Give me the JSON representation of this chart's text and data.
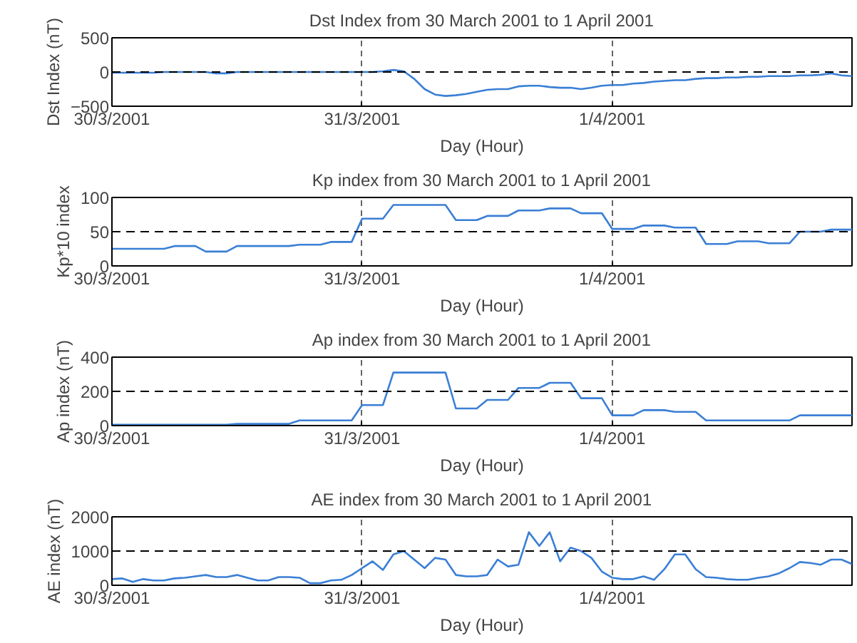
{
  "chart_data": [
    {
      "type": "line",
      "title": "Dst Index from 30 March 2001 to 1 April 2001",
      "xlabel": "Day (Hour)",
      "ylabel": "Dst Index (nT)",
      "x": [
        "2001-03-30T00:00",
        "2001-03-30T01:00",
        "2001-03-30T02:00",
        "2001-03-30T03:00",
        "2001-03-30T04:00",
        "2001-03-30T05:00",
        "2001-03-30T06:00",
        "2001-03-30T07:00",
        "2001-03-30T08:00",
        "2001-03-30T09:00",
        "2001-03-30T10:00",
        "2001-03-30T11:00",
        "2001-03-30T12:00",
        "2001-03-30T13:00",
        "2001-03-30T14:00",
        "2001-03-30T15:00",
        "2001-03-30T16:00",
        "2001-03-30T17:00",
        "2001-03-30T18:00",
        "2001-03-30T19:00",
        "2001-03-30T20:00",
        "2001-03-30T21:00",
        "2001-03-30T22:00",
        "2001-03-30T23:00",
        "2001-03-31T00:00",
        "2001-03-31T01:00",
        "2001-03-31T02:00",
        "2001-03-31T03:00",
        "2001-03-31T04:00",
        "2001-03-31T05:00",
        "2001-03-31T06:00",
        "2001-03-31T07:00",
        "2001-03-31T08:00",
        "2001-03-31T09:00",
        "2001-03-31T10:00",
        "2001-03-31T11:00",
        "2001-03-31T12:00",
        "2001-03-31T13:00",
        "2001-03-31T14:00",
        "2001-03-31T15:00",
        "2001-03-31T16:00",
        "2001-03-31T17:00",
        "2001-03-31T18:00",
        "2001-03-31T19:00",
        "2001-03-31T20:00",
        "2001-03-31T21:00",
        "2001-03-31T22:00",
        "2001-03-31T23:00",
        "2001-04-01T00:00",
        "2001-04-01T01:00",
        "2001-04-01T02:00",
        "2001-04-01T03:00",
        "2001-04-01T04:00",
        "2001-04-01T05:00",
        "2001-04-01T06:00",
        "2001-04-01T07:00",
        "2001-04-01T08:00",
        "2001-04-01T09:00",
        "2001-04-01T10:00",
        "2001-04-01T11:00",
        "2001-04-01T12:00",
        "2001-04-01T13:00",
        "2001-04-01T14:00",
        "2001-04-01T15:00",
        "2001-04-01T16:00",
        "2001-04-01T17:00",
        "2001-04-01T18:00",
        "2001-04-01T19:00",
        "2001-04-01T20:00",
        "2001-04-01T21:00",
        "2001-04-01T22:00",
        "2001-04-01T23:00"
      ],
      "series": [
        {
          "color": "#3a7fd5",
          "values": [
            -10,
            -10,
            -10,
            -10,
            -10,
            0,
            0,
            0,
            0,
            0,
            -20,
            -20,
            0,
            0,
            0,
            0,
            0,
            0,
            0,
            0,
            0,
            0,
            0,
            0,
            0,
            0,
            10,
            30,
            10,
            -100,
            -250,
            -330,
            -350,
            -340,
            -320,
            -290,
            -260,
            -250,
            -250,
            -210,
            -200,
            -200,
            -220,
            -230,
            -230,
            -250,
            -230,
            -200,
            -190,
            -190,
            -170,
            -160,
            -140,
            -130,
            -120,
            -120,
            -100,
            -90,
            -90,
            -80,
            -80,
            -70,
            -70,
            -60,
            -60,
            -60,
            -50,
            -50,
            -40,
            -20,
            -50,
            -60
          ]
        }
      ],
      "xlim": [
        "2001-03-30T00:00",
        "2001-04-01T23:00"
      ],
      "xticks": [
        {
          "value": "2001-03-30",
          "label": "30/3/2001"
        },
        {
          "value": "2001-03-31",
          "label": "31/3/2001"
        },
        {
          "value": "2001-04-01",
          "label": "1/4/2001"
        }
      ],
      "ylim": [
        -500,
        500
      ],
      "yticks": [
        -500,
        0,
        500
      ],
      "grid": "x",
      "ref_lines": [
        {
          "axis": "y",
          "value": 0,
          "color": "#000000",
          "line_style": "dashed"
        }
      ]
    },
    {
      "type": "line",
      "title": "Kp index from 30 March 2001 to 1 April 2001",
      "xlabel": "Day (Hour)",
      "ylabel": "Kp*10 index",
      "x": [
        "2001-03-30T00:00",
        "2001-03-30T01:00",
        "2001-03-30T02:00",
        "2001-03-30T03:00",
        "2001-03-30T04:00",
        "2001-03-30T05:00",
        "2001-03-30T06:00",
        "2001-03-30T07:00",
        "2001-03-30T08:00",
        "2001-03-30T09:00",
        "2001-03-30T10:00",
        "2001-03-30T11:00",
        "2001-03-30T12:00",
        "2001-03-30T13:00",
        "2001-03-30T14:00",
        "2001-03-30T15:00",
        "2001-03-30T16:00",
        "2001-03-30T17:00",
        "2001-03-30T18:00",
        "2001-03-30T19:00",
        "2001-03-30T20:00",
        "2001-03-30T21:00",
        "2001-03-30T22:00",
        "2001-03-30T23:00",
        "2001-03-31T00:00",
        "2001-03-31T01:00",
        "2001-03-31T02:00",
        "2001-03-31T03:00",
        "2001-03-31T04:00",
        "2001-03-31T05:00",
        "2001-03-31T06:00",
        "2001-03-31T07:00",
        "2001-03-31T08:00",
        "2001-03-31T09:00",
        "2001-03-31T10:00",
        "2001-03-31T11:00",
        "2001-03-31T12:00",
        "2001-03-31T13:00",
        "2001-03-31T14:00",
        "2001-03-31T15:00",
        "2001-03-31T16:00",
        "2001-03-31T17:00",
        "2001-03-31T18:00",
        "2001-03-31T19:00",
        "2001-03-31T20:00",
        "2001-03-31T21:00",
        "2001-03-31T22:00",
        "2001-03-31T23:00",
        "2001-04-01T00:00",
        "2001-04-01T01:00",
        "2001-04-01T02:00",
        "2001-04-01T03:00",
        "2001-04-01T04:00",
        "2001-04-01T05:00",
        "2001-04-01T06:00",
        "2001-04-01T07:00",
        "2001-04-01T08:00",
        "2001-04-01T09:00",
        "2001-04-01T10:00",
        "2001-04-01T11:00",
        "2001-04-01T12:00",
        "2001-04-01T13:00",
        "2001-04-01T14:00",
        "2001-04-01T15:00",
        "2001-04-01T16:00",
        "2001-04-01T17:00",
        "2001-04-01T18:00",
        "2001-04-01T19:00",
        "2001-04-01T20:00",
        "2001-04-01T21:00",
        "2001-04-01T22:00",
        "2001-04-01T23:00"
      ],
      "series": [
        {
          "color": "#3a7fd5",
          "values": [
            25,
            25,
            25,
            25,
            25,
            25,
            29,
            29,
            29,
            21,
            21,
            21,
            29,
            29,
            29,
            29,
            29,
            29,
            31,
            31,
            31,
            35,
            35,
            35,
            69,
            69,
            69,
            89,
            89,
            89,
            89,
            89,
            89,
            67,
            67,
            67,
            73,
            73,
            73,
            81,
            81,
            81,
            84,
            84,
            84,
            77,
            77,
            77,
            54,
            54,
            54,
            59,
            59,
            59,
            56,
            56,
            56,
            32,
            32,
            32,
            36,
            36,
            36,
            33,
            33,
            33,
            50,
            50,
            50,
            53,
            53,
            53
          ]
        }
      ],
      "xlim": [
        "2001-03-30T00:00",
        "2001-04-01T23:00"
      ],
      "xticks": [
        {
          "value": "2001-03-30",
          "label": "30/3/2001"
        },
        {
          "value": "2001-03-31",
          "label": "31/3/2001"
        },
        {
          "value": "2001-04-01",
          "label": "1/4/2001"
        }
      ],
      "ylim": [
        0,
        100
      ],
      "yticks": [
        0,
        50,
        100
      ],
      "grid": "x",
      "ref_lines": [
        {
          "axis": "y",
          "value": 50,
          "color": "#000000",
          "line_style": "dashed"
        }
      ]
    },
    {
      "type": "line",
      "title": "Ap index from 30 March 2001 to 1 April 2001",
      "xlabel": "Day (Hour)",
      "ylabel": "Ap index (nT)",
      "x": [
        "2001-03-30T00:00",
        "2001-03-30T01:00",
        "2001-03-30T02:00",
        "2001-03-30T03:00",
        "2001-03-30T04:00",
        "2001-03-30T05:00",
        "2001-03-30T06:00",
        "2001-03-30T07:00",
        "2001-03-30T08:00",
        "2001-03-30T09:00",
        "2001-03-30T10:00",
        "2001-03-30T11:00",
        "2001-03-30T12:00",
        "2001-03-30T13:00",
        "2001-03-30T14:00",
        "2001-03-30T15:00",
        "2001-03-30T16:00",
        "2001-03-30T17:00",
        "2001-03-30T18:00",
        "2001-03-30T19:00",
        "2001-03-30T20:00",
        "2001-03-30T21:00",
        "2001-03-30T22:00",
        "2001-03-30T23:00",
        "2001-03-31T00:00",
        "2001-03-31T01:00",
        "2001-03-31T02:00",
        "2001-03-31T03:00",
        "2001-03-31T04:00",
        "2001-03-31T05:00",
        "2001-03-31T06:00",
        "2001-03-31T07:00",
        "2001-03-31T08:00",
        "2001-03-31T09:00",
        "2001-03-31T10:00",
        "2001-03-31T11:00",
        "2001-03-31T12:00",
        "2001-03-31T13:00",
        "2001-03-31T14:00",
        "2001-03-31T15:00",
        "2001-03-31T16:00",
        "2001-03-31T17:00",
        "2001-03-31T18:00",
        "2001-03-31T19:00",
        "2001-03-31T20:00",
        "2001-03-31T21:00",
        "2001-03-31T22:00",
        "2001-03-31T23:00",
        "2001-04-01T00:00",
        "2001-04-01T01:00",
        "2001-04-01T02:00",
        "2001-04-01T03:00",
        "2001-04-01T04:00",
        "2001-04-01T05:00",
        "2001-04-01T06:00",
        "2001-04-01T07:00",
        "2001-04-01T08:00",
        "2001-04-01T09:00",
        "2001-04-01T10:00",
        "2001-04-01T11:00",
        "2001-04-01T12:00",
        "2001-04-01T13:00",
        "2001-04-01T14:00",
        "2001-04-01T15:00",
        "2001-04-01T16:00",
        "2001-04-01T17:00",
        "2001-04-01T18:00",
        "2001-04-01T19:00",
        "2001-04-01T20:00",
        "2001-04-01T21:00",
        "2001-04-01T22:00",
        "2001-04-01T23:00"
      ],
      "series": [
        {
          "color": "#3a7fd5",
          "values": [
            5,
            5,
            5,
            5,
            5,
            5,
            5,
            5,
            5,
            5,
            5,
            5,
            10,
            10,
            10,
            10,
            10,
            10,
            30,
            30,
            30,
            30,
            30,
            30,
            120,
            120,
            120,
            310,
            310,
            310,
            310,
            310,
            310,
            100,
            100,
            100,
            150,
            150,
            150,
            220,
            220,
            220,
            250,
            250,
            250,
            160,
            160,
            160,
            60,
            60,
            60,
            90,
            90,
            90,
            80,
            80,
            80,
            30,
            30,
            30,
            30,
            30,
            30,
            30,
            30,
            30,
            60,
            60,
            60,
            60,
            60,
            60
          ]
        }
      ],
      "xlim": [
        "2001-03-30T00:00",
        "2001-04-01T23:00"
      ],
      "xticks": [
        {
          "value": "2001-03-30",
          "label": "30/3/2001"
        },
        {
          "value": "2001-03-31",
          "label": "31/3/2001"
        },
        {
          "value": "2001-04-01",
          "label": "1/4/2001"
        }
      ],
      "ylim": [
        0,
        400
      ],
      "yticks": [
        0,
        200,
        400
      ],
      "grid": "x",
      "ref_lines": [
        {
          "axis": "y",
          "value": 200,
          "color": "#000000",
          "line_style": "dashed"
        }
      ]
    },
    {
      "type": "line",
      "title": "AE index from 30 March 2001 to 1 April 2001",
      "xlabel": "Day (Hour)",
      "ylabel": "AE index (nT)",
      "x": [
        "2001-03-30T00:00",
        "2001-03-30T01:00",
        "2001-03-30T02:00",
        "2001-03-30T03:00",
        "2001-03-30T04:00",
        "2001-03-30T05:00",
        "2001-03-30T06:00",
        "2001-03-30T07:00",
        "2001-03-30T08:00",
        "2001-03-30T09:00",
        "2001-03-30T10:00",
        "2001-03-30T11:00",
        "2001-03-30T12:00",
        "2001-03-30T13:00",
        "2001-03-30T14:00",
        "2001-03-30T15:00",
        "2001-03-30T16:00",
        "2001-03-30T17:00",
        "2001-03-30T18:00",
        "2001-03-30T19:00",
        "2001-03-30T20:00",
        "2001-03-30T21:00",
        "2001-03-30T22:00",
        "2001-03-30T23:00",
        "2001-03-31T00:00",
        "2001-03-31T01:00",
        "2001-03-31T02:00",
        "2001-03-31T03:00",
        "2001-03-31T04:00",
        "2001-03-31T05:00",
        "2001-03-31T06:00",
        "2001-03-31T07:00",
        "2001-03-31T08:00",
        "2001-03-31T09:00",
        "2001-03-31T10:00",
        "2001-03-31T11:00",
        "2001-03-31T12:00",
        "2001-03-31T13:00",
        "2001-03-31T14:00",
        "2001-03-31T15:00",
        "2001-03-31T16:00",
        "2001-03-31T17:00",
        "2001-03-31T18:00",
        "2001-03-31T19:00",
        "2001-03-31T20:00",
        "2001-03-31T21:00",
        "2001-03-31T22:00",
        "2001-03-31T23:00",
        "2001-04-01T00:00",
        "2001-04-01T01:00",
        "2001-04-01T02:00",
        "2001-04-01T03:00",
        "2001-04-01T04:00",
        "2001-04-01T05:00",
        "2001-04-01T06:00",
        "2001-04-01T07:00",
        "2001-04-01T08:00",
        "2001-04-01T09:00",
        "2001-04-01T10:00",
        "2001-04-01T11:00",
        "2001-04-01T12:00",
        "2001-04-01T13:00",
        "2001-04-01T14:00",
        "2001-04-01T15:00",
        "2001-04-01T16:00",
        "2001-04-01T17:00",
        "2001-04-01T18:00",
        "2001-04-01T19:00",
        "2001-04-01T20:00",
        "2001-04-01T21:00",
        "2001-04-01T22:00",
        "2001-04-01T23:00"
      ],
      "series": [
        {
          "color": "#3a7fd5",
          "values": [
            180,
            200,
            100,
            180,
            140,
            140,
            200,
            220,
            260,
            300,
            240,
            240,
            300,
            220,
            140,
            140,
            240,
            240,
            220,
            60,
            60,
            140,
            160,
            300,
            500,
            700,
            450,
            900,
            1000,
            750,
            500,
            800,
            750,
            300,
            260,
            260,
            300,
            750,
            550,
            600,
            1550,
            1150,
            1550,
            700,
            1100,
            1000,
            800,
            400,
            220,
            180,
            180,
            260,
            160,
            470,
            900,
            900,
            470,
            240,
            220,
            180,
            160,
            160,
            220,
            260,
            350,
            500,
            680,
            650,
            600,
            750,
            750,
            620
          ]
        }
      ],
      "xlim": [
        "2001-03-30T00:00",
        "2001-04-01T23:00"
      ],
      "xticks": [
        {
          "value": "2001-03-30",
          "label": "30/3/2001"
        },
        {
          "value": "2001-03-31",
          "label": "31/3/2001"
        },
        {
          "value": "2001-04-01",
          "label": "1/4/2001"
        }
      ],
      "ylim": [
        0,
        2000
      ],
      "yticks": [
        0,
        1000,
        2000
      ],
      "grid": "x",
      "ref_lines": [
        {
          "axis": "y",
          "value": 1000,
          "color": "#000000",
          "line_style": "dashed"
        }
      ]
    }
  ]
}
